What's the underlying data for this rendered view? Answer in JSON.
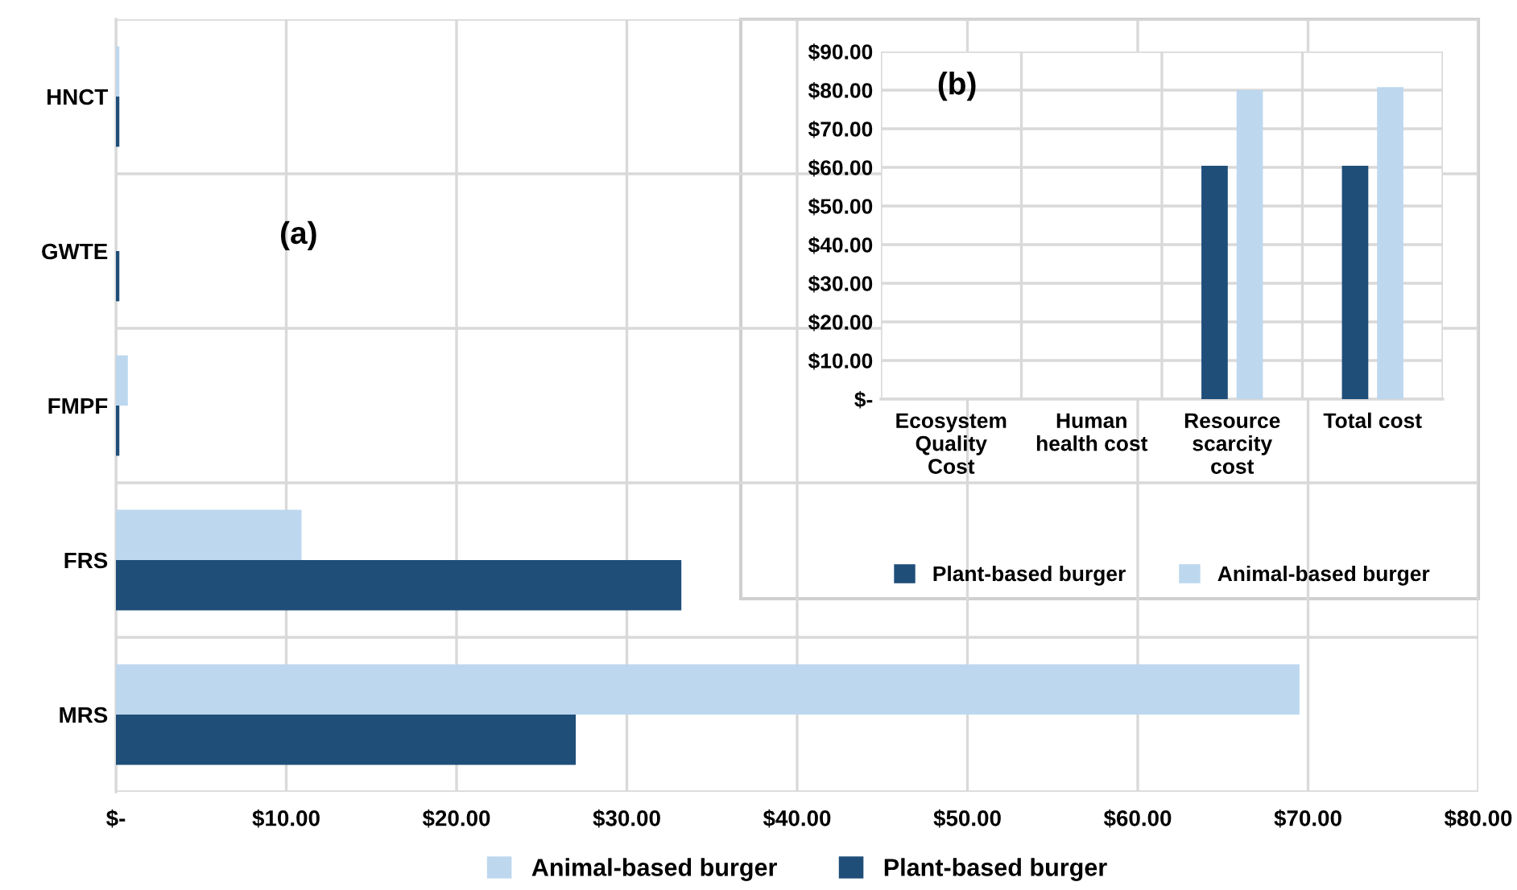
{
  "chart_data": [
    {
      "type": "bar",
      "orientation": "horizontal",
      "categories": [
        "HNCT",
        "GWTE",
        "FMPF",
        "FRS",
        "MRS"
      ],
      "series": [
        {
          "name": "Animal-based burger",
          "color": "#bdd7ee",
          "values": [
            0.2,
            0,
            0.7,
            10.9,
            69.5
          ]
        },
        {
          "name": "Plant-based burger",
          "color": "#1f4e79",
          "values": [
            0.2,
            0.2,
            0.2,
            33.2,
            27.0
          ]
        }
      ],
      "xlim": [
        0,
        80
      ],
      "xticks": [
        {
          "value": 0,
          "label": "$-"
        },
        {
          "value": 10,
          "label": "$10.00"
        },
        {
          "value": 20,
          "label": "$20.00"
        },
        {
          "value": 30,
          "label": "$30.00"
        },
        {
          "value": 40,
          "label": "$40.00"
        },
        {
          "value": 50,
          "label": "$50.00"
        },
        {
          "value": 60,
          "label": "$60.00"
        },
        {
          "value": 70,
          "label": "$70.00"
        },
        {
          "value": 80,
          "label": "$80.00"
        }
      ],
      "grid": true,
      "legend": "bottom",
      "annotations": [
        "(a)"
      ]
    },
    {
      "type": "bar",
      "categories": [
        "Ecosystem\nQuality\nCost",
        "Human\nhealth cost",
        "Resource\nscarcity\ncost",
        "Total cost"
      ],
      "series": [
        {
          "name": "Plant-based burger",
          "color": "#1f4e79",
          "values": [
            0,
            0,
            60.4,
            60.4
          ]
        },
        {
          "name": "Animal-based burger",
          "color": "#bdd7ee",
          "values": [
            0,
            0,
            80.0,
            80.8
          ]
        }
      ],
      "ylim": [
        0,
        90
      ],
      "yticks": [
        {
          "value": 0,
          "label": "$-"
        },
        {
          "value": 10,
          "label": "$10.00"
        },
        {
          "value": 20,
          "label": "$20.00"
        },
        {
          "value": 30,
          "label": "$30.00"
        },
        {
          "value": 40,
          "label": "$40.00"
        },
        {
          "value": 50,
          "label": "$50.00"
        },
        {
          "value": 60,
          "label": "$60.00"
        },
        {
          "value": 70,
          "label": "$70.00"
        },
        {
          "value": 80,
          "label": "$80.00"
        },
        {
          "value": 90,
          "label": "$90.00"
        }
      ],
      "grid": true,
      "legend": "bottom",
      "annotations": [
        "(b)"
      ]
    }
  ]
}
